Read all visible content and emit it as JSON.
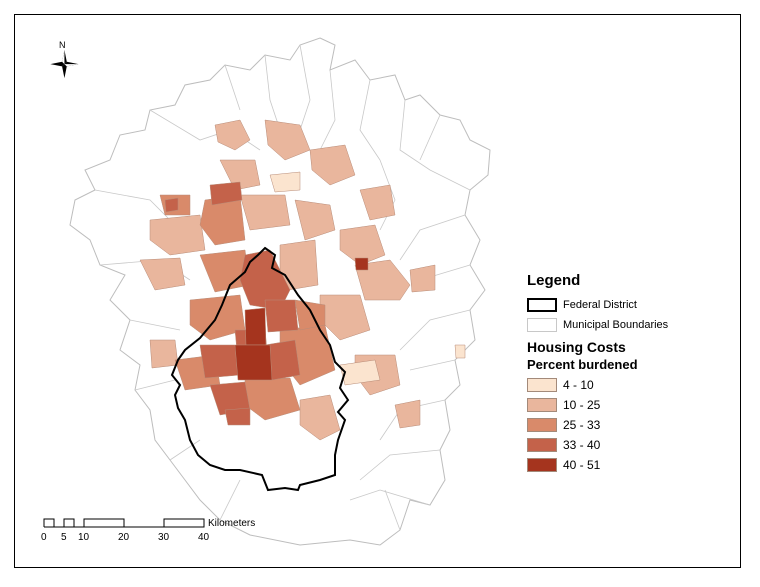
{
  "legend": {
    "title": "Legend",
    "federal_district": "Federal District",
    "municipal_boundaries": "Municipal Boundaries",
    "housing_title": "Housing Costs",
    "percent_title": "Percent burdened",
    "classes": [
      {
        "label": "4 - 10",
        "color": "#fbe4cf"
      },
      {
        "label": "10 - 25",
        "color": "#e9b69d"
      },
      {
        "label": "25 - 33",
        "color": "#d98a6a"
      },
      {
        "label": "33 - 40",
        "color": "#c4624a"
      },
      {
        "label": "40 - 51",
        "color": "#a5341e"
      }
    ]
  },
  "north_arrow": {
    "label": "N",
    "icon": "north-arrow-icon"
  },
  "scale_bar": {
    "unit": "Kilometers",
    "ticks": [
      "0",
      "5",
      "10",
      "20",
      "30",
      "40"
    ]
  }
}
